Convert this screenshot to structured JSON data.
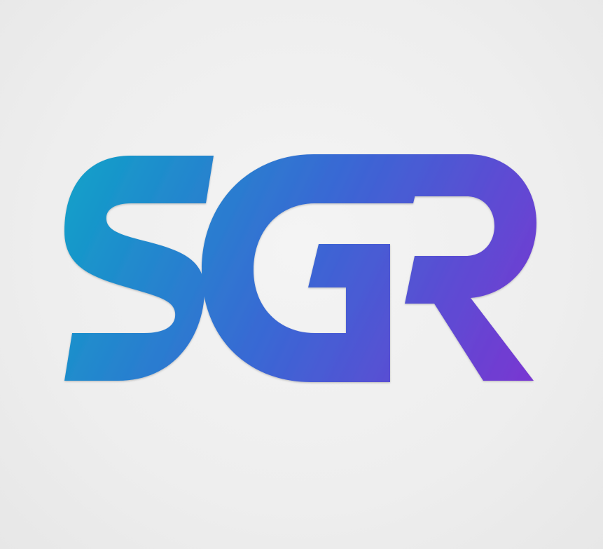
{
  "logo": {
    "name": "SGR monogram",
    "wordmark": "SGR",
    "gradient_start": "#0fa3c8",
    "gradient_mid": "#3a67d4",
    "gradient_end": "#7a35d2",
    "background": "#efefef"
  }
}
